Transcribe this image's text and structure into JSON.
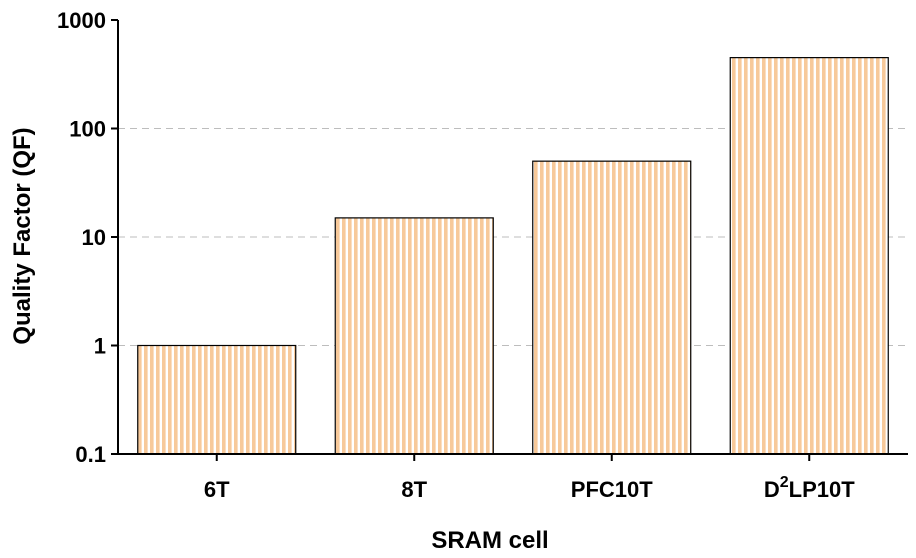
{
  "chart_data": {
    "type": "bar",
    "yscale": "log",
    "ylim": [
      0.1,
      1000
    ],
    "yticks": [
      0.1,
      1,
      10,
      100,
      1000
    ],
    "ytick_labels": [
      "0.1",
      "1",
      "10",
      "100",
      "1000"
    ],
    "xlabel": "SRAM cell",
    "ylabel": "Quality Factor (QF)",
    "categories": [
      {
        "base": "6T",
        "sup": "",
        "rest": ""
      },
      {
        "base": "8T",
        "sup": "",
        "rest": ""
      },
      {
        "base": "PFC10T",
        "sup": "",
        "rest": ""
      },
      {
        "base": "D",
        "sup": "2",
        "rest": "LP10T"
      }
    ],
    "values": [
      1,
      15,
      50,
      450
    ],
    "grid": "horizontal dashed",
    "bar_color": "#f7c99a",
    "bar_stripe_color": "#ffffff",
    "bar_edge_color": "#000000"
  }
}
